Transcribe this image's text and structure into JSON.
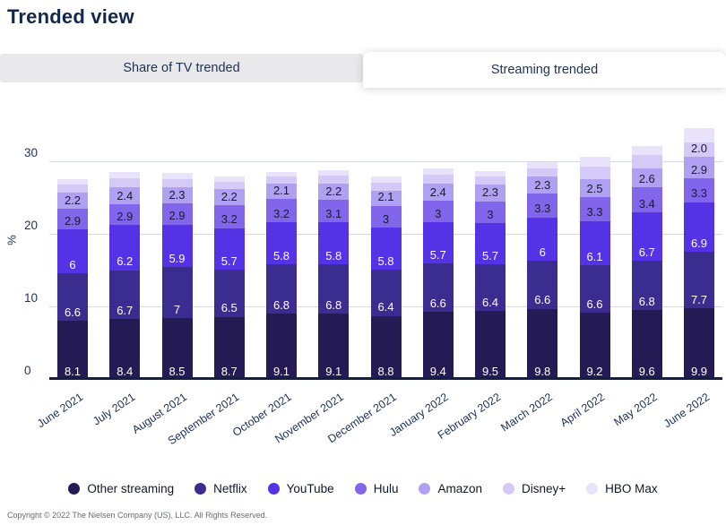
{
  "page": {
    "title": "Trended view",
    "footer": "Copyright © 2022 The Nielsen Company (US), LLC. All Rights Reserved."
  },
  "tabs": [
    {
      "label": "Share of TV trended",
      "active": false
    },
    {
      "label": "Streaming trended",
      "active": true
    }
  ],
  "chart_data": {
    "type": "bar",
    "subtype": "stacked",
    "title": "Streaming trended",
    "ylabel": "%",
    "xlabel": "",
    "yticks": [
      0,
      10,
      20,
      30
    ],
    "ylim": [
      0,
      35.5
    ],
    "grid": true,
    "legend_position": "bottom",
    "categories": [
      "June 2021",
      "July 2021",
      "August 2021",
      "September 2021",
      "October 2021",
      "November 2021",
      "December 2021",
      "January 2022",
      "February 2022",
      "March 2022",
      "April 2022",
      "May 2022",
      "June 2022"
    ],
    "series": [
      {
        "name": "Other streaming",
        "color": "#241b55",
        "label_color": "#ffffff",
        "values": [
          8.1,
          8.4,
          8.5,
          8.7,
          9.1,
          9.1,
          8.8,
          9.4,
          9.5,
          9.8,
          9.2,
          9.6,
          9.9
        ],
        "labels": [
          "8.1",
          "8.4",
          "8.5",
          "8.7",
          "9.1",
          "9.1",
          "8.8",
          "9.4",
          "9.5",
          "9.8",
          "9.2",
          "9.6",
          "9.9"
        ]
      },
      {
        "name": "Netflix",
        "color": "#3b2c90",
        "label_color": "#ffffff",
        "values": [
          6.6,
          6.7,
          7,
          6.5,
          6.8,
          6.8,
          6.4,
          6.6,
          6.4,
          6.6,
          6.6,
          6.8,
          7.7
        ],
        "labels": [
          "6.6",
          "6.7",
          "7",
          "6.5",
          "6.8",
          "6.8",
          "6.4",
          "6.6",
          "6.4",
          "6.6",
          "6.6",
          "6.8",
          "7.7"
        ]
      },
      {
        "name": "YouTube",
        "color": "#5433e6",
        "label_color": "#ffffff",
        "values": [
          6,
          6.2,
          5.9,
          5.7,
          5.8,
          5.8,
          5.8,
          5.7,
          5.7,
          6,
          6.1,
          6.7,
          6.9
        ],
        "labels": [
          "6",
          "6.2",
          "5.9",
          "5.7",
          "5.8",
          "5.8",
          "5.8",
          "5.7",
          "5.7",
          "6",
          "6.1",
          "6.7",
          "6.9"
        ]
      },
      {
        "name": "Hulu",
        "color": "#8166ec",
        "label_color": "#191a33",
        "values": [
          2.9,
          2.9,
          2.9,
          3.2,
          3.2,
          3.1,
          3,
          3,
          3,
          3.3,
          3.3,
          3.4,
          3.3
        ],
        "labels": [
          "2.9",
          "2.9",
          "2.9",
          "3.2",
          "3.2",
          "3.1",
          "3",
          "3",
          "3",
          "3.3",
          "3.3",
          "3.4",
          "3.3"
        ]
      },
      {
        "name": "Amazon",
        "color": "#b0a0f2",
        "label_color": "#191a33",
        "values": [
          2.2,
          2.4,
          2.3,
          2.2,
          2.1,
          2.2,
          2.1,
          2.4,
          2.3,
          2.3,
          2.5,
          2.6,
          2.9
        ],
        "labels": [
          "2.2",
          "2.4",
          "2.3",
          "2.2",
          "2.1",
          "2.2",
          "2.1",
          "2.4",
          "2.3",
          "2.3",
          "2.5",
          "2.6",
          "2.9"
        ]
      },
      {
        "name": "Disney+",
        "color": "#d5c9f8",
        "label_color": "#191a33",
        "values": [
          1.1,
          1.2,
          1.1,
          1.0,
          1.0,
          1.1,
          1.1,
          1.2,
          1.1,
          1.2,
          1.7,
          1.9,
          2.0
        ],
        "labels": [
          "",
          "",
          "",
          "",
          "",
          "",
          "",
          "",
          "",
          "",
          "",
          "",
          "2.0"
        ]
      },
      {
        "name": "HBO Max",
        "color": "#e9e2fb",
        "label_color": "#191a33",
        "values": [
          0.8,
          0.9,
          0.8,
          0.7,
          0.7,
          0.8,
          0.8,
          0.9,
          0.8,
          0.8,
          1.4,
          1.2,
          2.0
        ],
        "labels": [
          "",
          "",
          "",
          "",
          "",
          "",
          "",
          "",
          "",
          "",
          "",
          "",
          ""
        ]
      }
    ]
  }
}
